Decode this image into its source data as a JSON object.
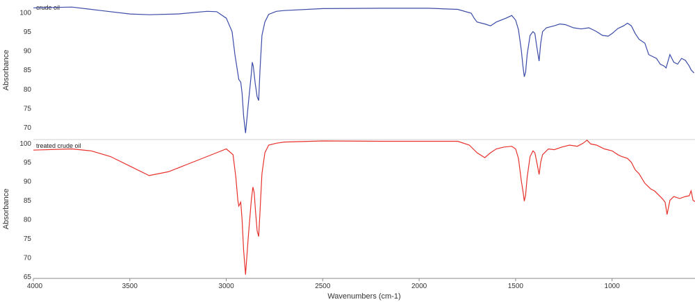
{
  "chart_data": {
    "type": "line",
    "title": "",
    "xlabel": "Wavenumbers (cm-1)",
    "xlim": [
      4000,
      570
    ],
    "x_reversed": true,
    "x_ticks": [
      "4000",
      "3500",
      "3000",
      "2500",
      "2000",
      "1500",
      "1000"
    ],
    "grid": false,
    "legend": "none",
    "panels": [
      {
        "label": "crude oil",
        "ylabel": "Absorbance",
        "ylim": [
          67,
          101.8
        ],
        "y_ticks": [
          "100",
          "95",
          "90",
          "85",
          "80",
          "75",
          "70"
        ],
        "color": "#3a4aa8",
        "x": [
          4000,
          3800,
          3650,
          3500,
          3400,
          3250,
          3100,
          3050,
          3000,
          2970,
          2955,
          2935,
          2925,
          2918,
          2910,
          2900,
          2885,
          2870,
          2865,
          2860,
          2850,
          2840,
          2832,
          2825,
          2815,
          2800,
          2780,
          2740,
          2700,
          2500,
          2200,
          1950,
          1800,
          1730,
          1715,
          1700,
          1660,
          1630,
          1600,
          1550,
          1520,
          1500,
          1485,
          1470,
          1462,
          1455,
          1448,
          1440,
          1425,
          1410,
          1400,
          1390,
          1378,
          1370,
          1360,
          1340,
          1300,
          1270,
          1240,
          1200,
          1160,
          1120,
          1080,
          1050,
          1020,
          1000,
          970,
          940,
          920,
          900,
          880,
          860,
          830,
          810,
          790,
          770,
          750,
          730,
          720,
          700,
          690,
          680,
          660,
          640,
          620,
          600,
          590,
          575
        ],
        "y": [
          101.2,
          101.4,
          100.5,
          99.6,
          99.4,
          99.6,
          100.3,
          100.2,
          98.5,
          95.0,
          89.0,
          82.5,
          81.8,
          79.0,
          73.0,
          68.5,
          76.5,
          84.0,
          87.0,
          86.0,
          81.5,
          78.0,
          77.0,
          85.0,
          94.0,
          97.5,
          99.5,
          100.3,
          100.5,
          101.0,
          101.1,
          101.1,
          100.8,
          99.8,
          98.5,
          97.5,
          97.0,
          96.5,
          97.5,
          98.5,
          99.2,
          98.0,
          95.5,
          90.0,
          86.0,
          83.2,
          84.5,
          89.0,
          94.0,
          95.0,
          94.5,
          91.0,
          87.3,
          92.0,
          95.0,
          96.0,
          96.5,
          97.0,
          96.8,
          96.0,
          95.7,
          96.0,
          95.0,
          94.0,
          93.8,
          94.5,
          95.8,
          96.5,
          97.2,
          96.5,
          94.5,
          93.0,
          92.0,
          89.0,
          88.5,
          88.0,
          86.5,
          86.0,
          85.5,
          89.0,
          88.0,
          87.0,
          86.5,
          88.0,
          87.5,
          86.0,
          85.0,
          84.2
        ]
      },
      {
        "label": "treated crude oil",
        "ylabel": "Absorbance",
        "ylim": [
          64.7,
          100.6
        ],
        "y_ticks": [
          "100",
          "95",
          "90",
          "85",
          "80",
          "75",
          "70",
          "65"
        ],
        "color": "#e8302a",
        "x": [
          4000,
          3800,
          3700,
          3600,
          3500,
          3400,
          3300,
          3200,
          3100,
          3050,
          3000,
          2965,
          2950,
          2940,
          2935,
          2925,
          2918,
          2910,
          2900,
          2885,
          2870,
          2862,
          2855,
          2848,
          2840,
          2832,
          2825,
          2815,
          2800,
          2780,
          2740,
          2700,
          2500,
          2200,
          1950,
          1800,
          1740,
          1720,
          1700,
          1660,
          1630,
          1600,
          1560,
          1520,
          1500,
          1485,
          1470,
          1462,
          1455,
          1448,
          1440,
          1425,
          1410,
          1400,
          1390,
          1378,
          1370,
          1360,
          1330,
          1300,
          1260,
          1220,
          1180,
          1150,
          1130,
          1110,
          1080,
          1060,
          1040,
          1000,
          970,
          950,
          920,
          900,
          880,
          860,
          830,
          800,
          780,
          760,
          740,
          725,
          715,
          700,
          680,
          650,
          620,
          600,
          590,
          580,
          570
        ],
        "y": [
          98.2,
          98.5,
          98.0,
          96.5,
          94.0,
          91.5,
          92.5,
          94.5,
          96.5,
          97.5,
          98.5,
          97.0,
          91.0,
          85.0,
          83.5,
          84.5,
          80.0,
          72.0,
          65.5,
          76.0,
          85.0,
          88.5,
          87.0,
          82.0,
          77.0,
          75.5,
          82.0,
          92.0,
          97.5,
          99.5,
          100.0,
          100.3,
          100.6,
          100.5,
          100.5,
          100.5,
          99.5,
          98.5,
          97.5,
          96.2,
          97.5,
          98.5,
          99.0,
          99.2,
          98.5,
          96.0,
          90.0,
          87.5,
          84.8,
          86.5,
          91.0,
          96.5,
          98.0,
          97.5,
          95.0,
          91.8,
          95.0,
          97.0,
          98.5,
          98.3,
          99.0,
          99.5,
          99.2,
          100.0,
          100.8,
          99.8,
          99.5,
          99.0,
          98.5,
          98.0,
          97.0,
          96.5,
          96.0,
          95.0,
          93.0,
          92.0,
          89.5,
          88.0,
          87.5,
          86.5,
          85.5,
          84.5,
          81.3,
          85.0,
          86.0,
          85.5,
          86.0,
          86.2,
          87.5,
          85.0,
          84.7
        ]
      }
    ]
  }
}
